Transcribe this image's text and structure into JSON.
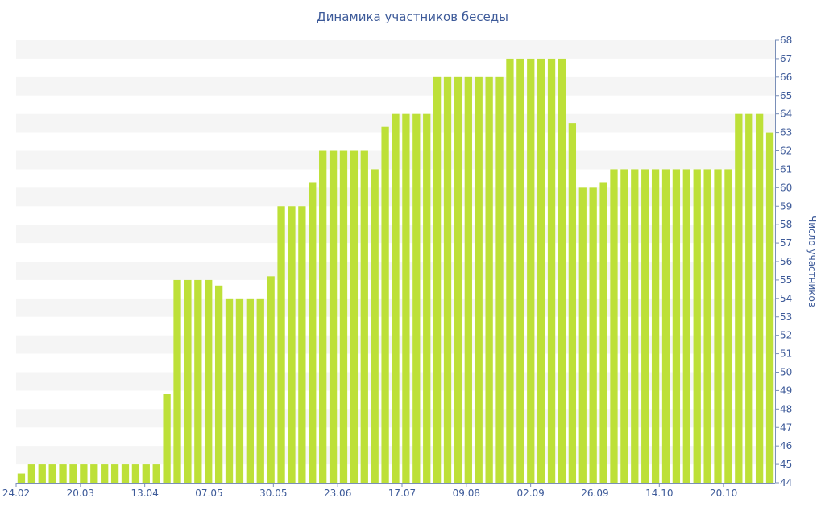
{
  "chart_data": {
    "type": "bar",
    "title": "Динамика участников беседы",
    "ylabel": "Число участников",
    "xlabel": "",
    "ylim": [
      44,
      68
    ],
    "y_axis_side": "right",
    "grid": "horizontal bands",
    "x_tick_labels": [
      "24.02",
      "20.03",
      "13.04",
      "07.05",
      "30.05",
      "23.06",
      "17.07",
      "09.08",
      "02.09",
      "26.09",
      "14.10",
      "20.10"
    ],
    "values": [
      44.5,
      45,
      45,
      45,
      45,
      45,
      45,
      45,
      45,
      45,
      45,
      45,
      45,
      45,
      48.8,
      55,
      55,
      55,
      55,
      54.7,
      54,
      54,
      54,
      54,
      55.2,
      59,
      59,
      59,
      60.3,
      62,
      62,
      62,
      62,
      62,
      61,
      63.3,
      64,
      64,
      64,
      64,
      66,
      66,
      66,
      66,
      66,
      66,
      66,
      67,
      67,
      67,
      67,
      67,
      67,
      63.5,
      60,
      60,
      60.3,
      61,
      61,
      61,
      61,
      61,
      61,
      61,
      61,
      61,
      61,
      61,
      61,
      64,
      64,
      64,
      63
    ],
    "colors": {
      "bar": "#bde038",
      "band": "#f5f5f5",
      "text": "#3d5a99",
      "axis": "#7a8fb8"
    }
  }
}
